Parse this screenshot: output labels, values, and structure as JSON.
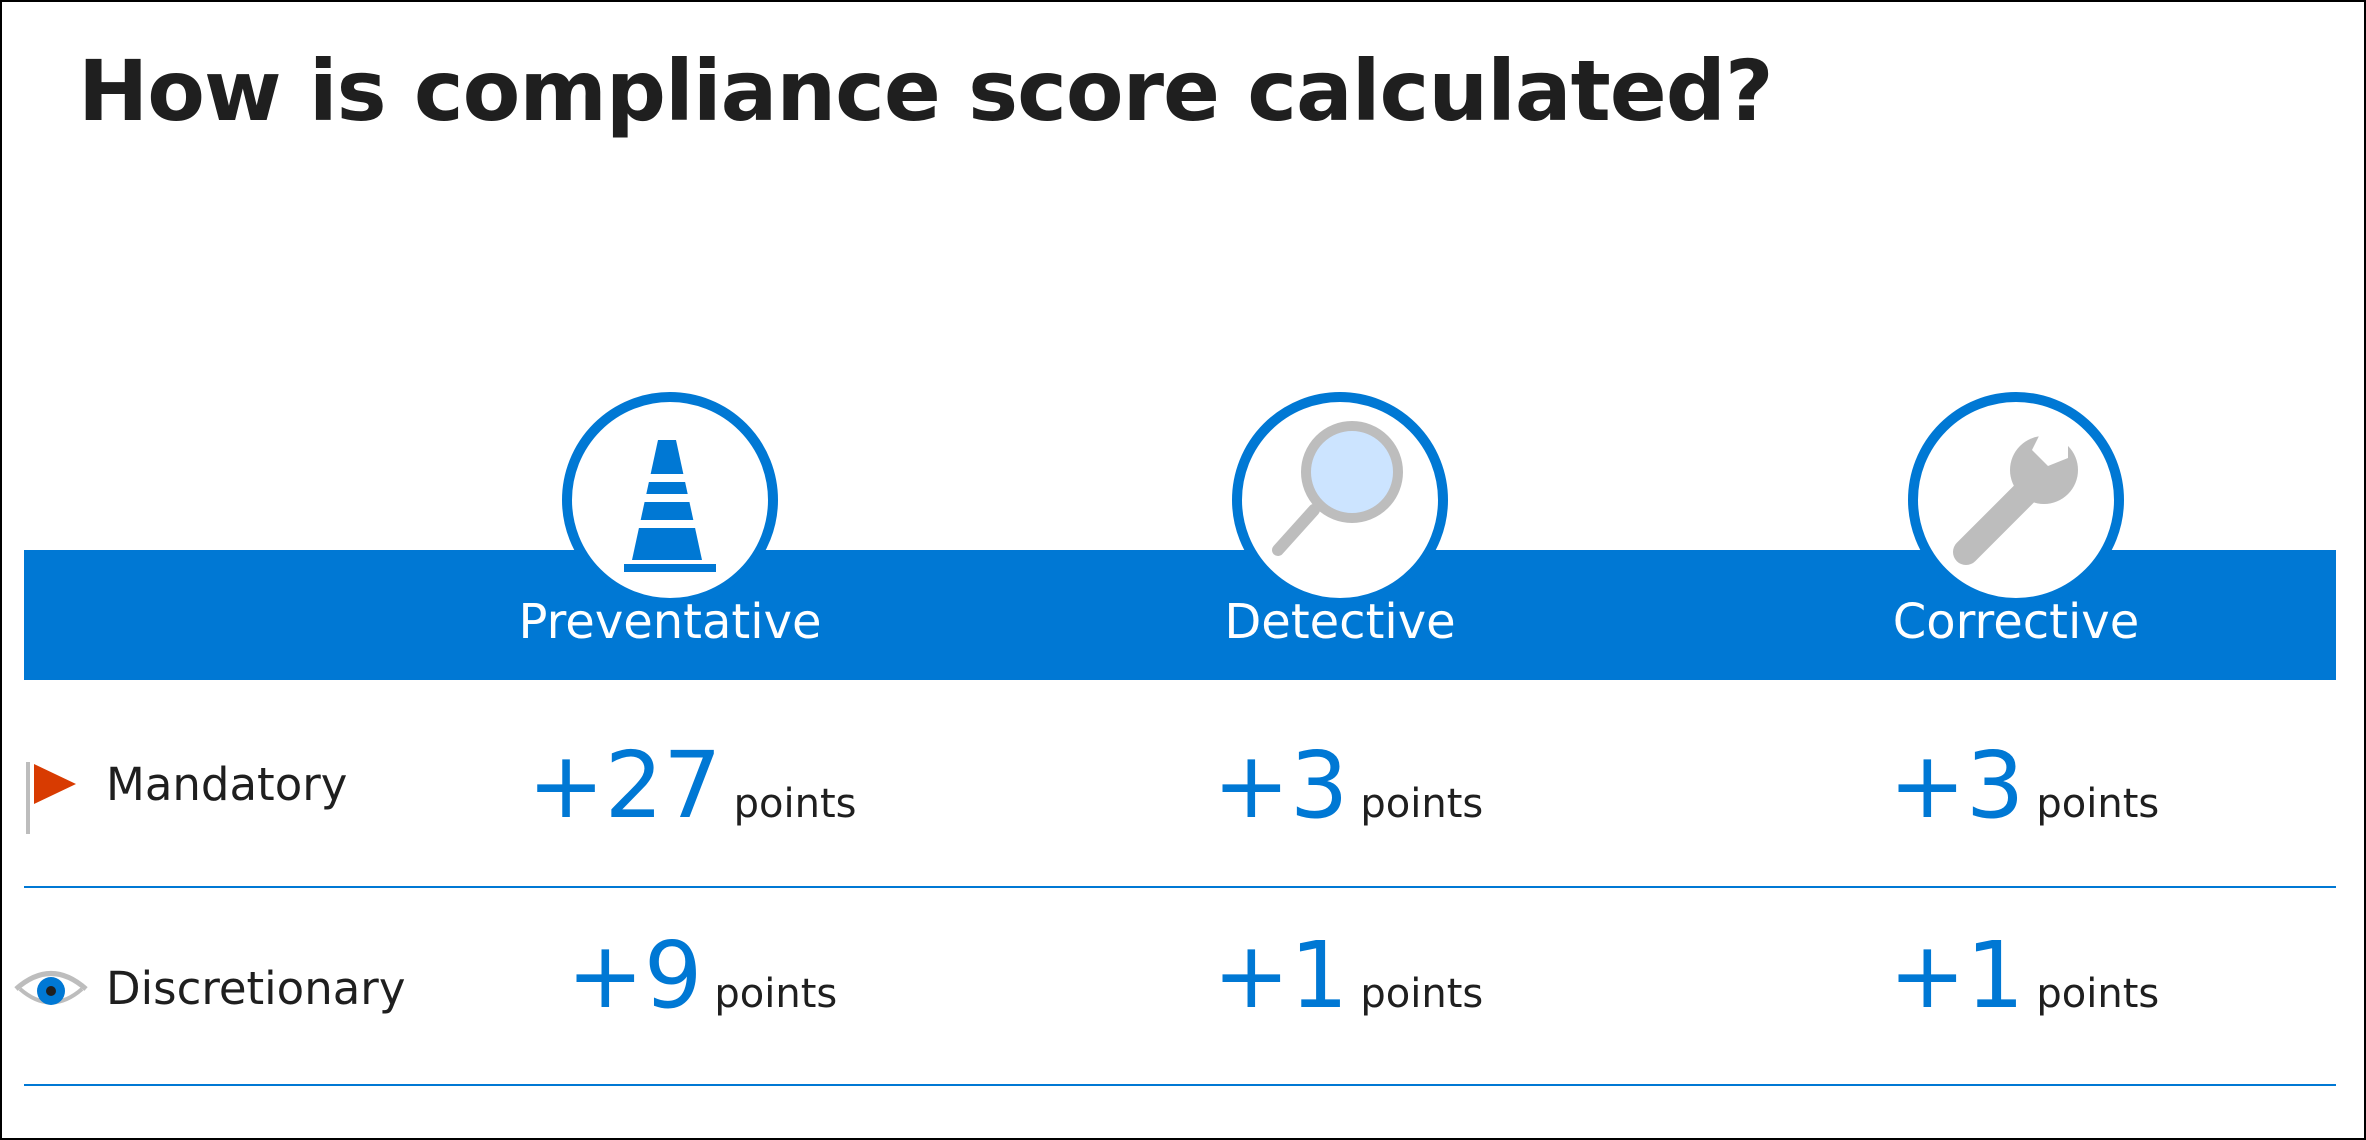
{
  "title": "How is compliance score calculated?",
  "colors": {
    "accent": "#0078d4",
    "flag": "#d83b01",
    "icon_gray": "#bdbdbd",
    "lens": "#cce4ff"
  },
  "columns": [
    {
      "label": "Preventative",
      "icon": "traffic-cone-icon"
    },
    {
      "label": "Detective",
      "icon": "magnifier-icon"
    },
    {
      "label": "Corrective",
      "icon": "wrench-icon"
    }
  ],
  "rows": [
    {
      "label": "Mandatory",
      "icon": "flag-icon",
      "scores": [
        {
          "value": "+27",
          "unit": "points"
        },
        {
          "value": "+3",
          "unit": "points"
        },
        {
          "value": "+3",
          "unit": "points"
        }
      ]
    },
    {
      "label": "Discretionary",
      "icon": "eye-icon",
      "scores": [
        {
          "value": "+9",
          "unit": "points"
        },
        {
          "value": "+1",
          "unit": "points"
        },
        {
          "value": "+1",
          "unit": "points"
        }
      ]
    }
  ]
}
